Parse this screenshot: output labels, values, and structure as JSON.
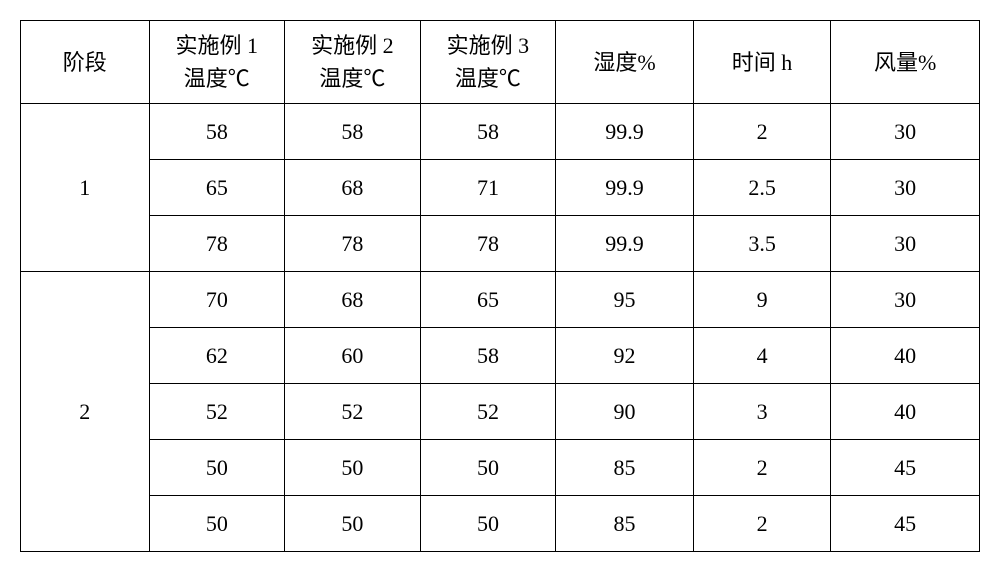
{
  "type": "table",
  "font_family": "SimSun",
  "header_fontsize": 22,
  "cell_fontsize": 22,
  "border_color": "#000000",
  "background_color": "#ffffff",
  "text_color": "#000000",
  "columns": {
    "stage": {
      "line1": "阶段"
    },
    "ex1": {
      "line1": "实施例 1",
      "line2": "温度℃"
    },
    "ex2": {
      "line1": "实施例 2",
      "line2": "温度℃"
    },
    "ex3": {
      "line1": "实施例 3",
      "line2": "温度℃"
    },
    "humidity": {
      "line1": "湿度%"
    },
    "time": {
      "line1": "时间 h"
    },
    "wind": {
      "line1": "风量%"
    }
  },
  "groups": [
    {
      "stage": "1",
      "rows": [
        {
          "ex1": "58",
          "ex2": "58",
          "ex3": "58",
          "humidity": "99.9",
          "time": "2",
          "wind": "30"
        },
        {
          "ex1": "65",
          "ex2": "68",
          "ex3": "71",
          "humidity": "99.9",
          "time": "2.5",
          "wind": "30"
        },
        {
          "ex1": "78",
          "ex2": "78",
          "ex3": "78",
          "humidity": "99.9",
          "time": "3.5",
          "wind": "30"
        }
      ]
    },
    {
      "stage": "2",
      "rows": [
        {
          "ex1": "70",
          "ex2": "68",
          "ex3": "65",
          "humidity": "95",
          "time": "9",
          "wind": "30"
        },
        {
          "ex1": "62",
          "ex2": "60",
          "ex3": "58",
          "humidity": "92",
          "time": "4",
          "wind": "40"
        },
        {
          "ex1": "52",
          "ex2": "52",
          "ex3": "52",
          "humidity": "90",
          "time": "3",
          "wind": "40"
        },
        {
          "ex1": "50",
          "ex2": "50",
          "ex3": "50",
          "humidity": "85",
          "time": "2",
          "wind": "45"
        },
        {
          "ex1": "50",
          "ex2": "50",
          "ex3": "50",
          "humidity": "85",
          "time": "2",
          "wind": "45"
        }
      ]
    }
  ]
}
